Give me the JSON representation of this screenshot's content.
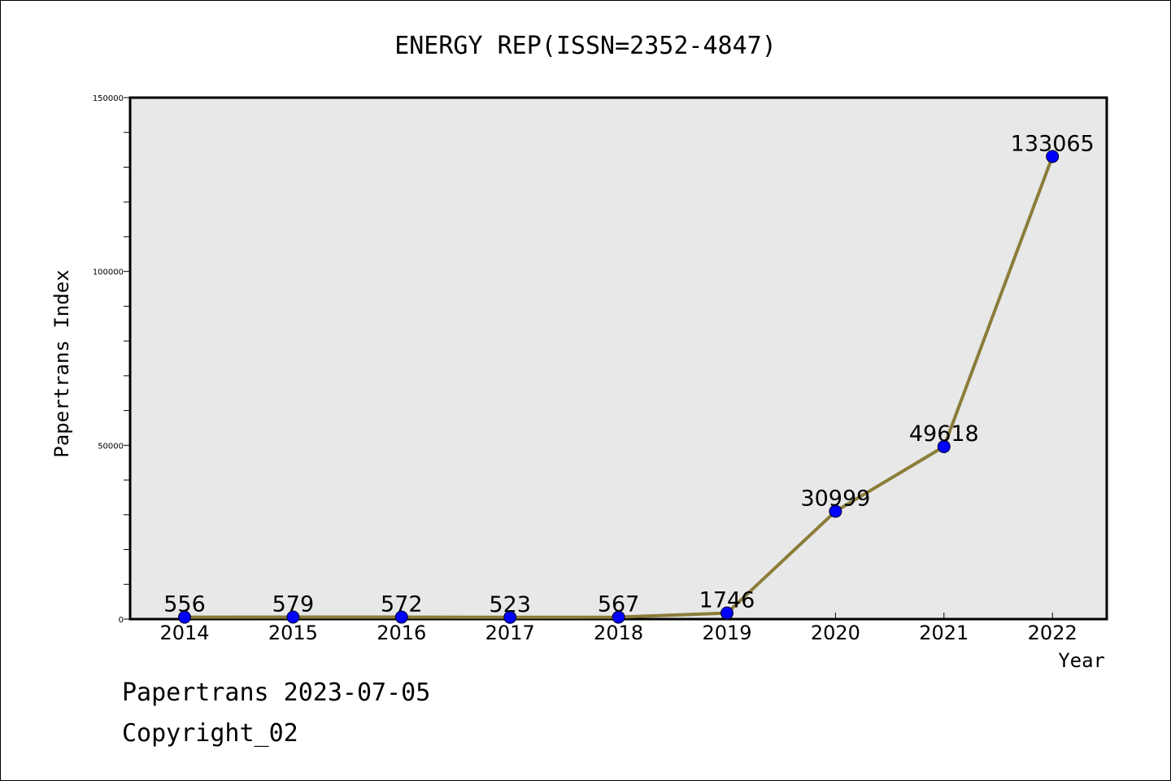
{
  "chart_data": {
    "type": "line",
    "title": "ENERGY REP(ISSN=2352-4847)",
    "xlabel": "Year",
    "ylabel": "Papertrans Index",
    "categories": [
      "2014",
      "2015",
      "2016",
      "2017",
      "2018",
      "2019",
      "2020",
      "2021",
      "2022"
    ],
    "values": [
      556,
      579,
      572,
      523,
      567,
      1746,
      30999,
      49618,
      133065
    ],
    "data_labels": [
      "556",
      "579",
      "572",
      "523",
      "567",
      "1746",
      "30999",
      "49618",
      "133065"
    ],
    "ylim": [
      0,
      150000
    ],
    "yticks": [
      0,
      50000,
      100000,
      150000
    ],
    "ytick_labels": [
      "0",
      "50000",
      "100000",
      "150000"
    ],
    "grid": false,
    "line_color": "#8b7d3a",
    "marker_color": "#0000ff",
    "plot_background": "#e8e8e8"
  },
  "footer": {
    "line1": "Papertrans 2023-07-05",
    "line2": "Copyright_02"
  }
}
